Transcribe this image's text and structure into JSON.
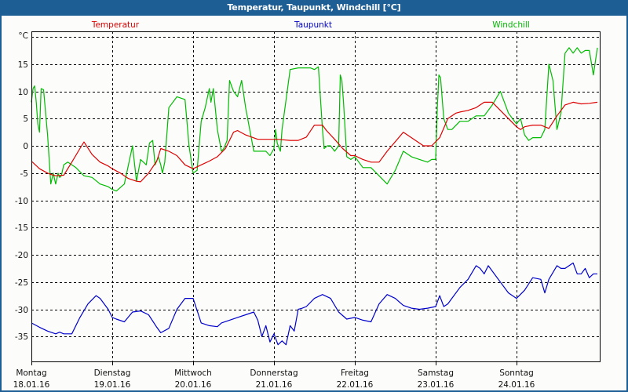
{
  "window": {
    "title": "Temperatur, Taupunkt, Windchill [°C]",
    "colors": {
      "titlebar": "#1d5f95",
      "background": "#fcfdfb",
      "grid": "#000000"
    }
  },
  "legend": [
    {
      "label": "Temperatur",
      "color": "#dd0000"
    },
    {
      "label": "Taupunkt",
      "color": "#0000cc"
    },
    {
      "label": "Windchill",
      "color": "#00bb00"
    }
  ],
  "axes": {
    "y_unit": "°C",
    "y_ticks": [
      "15",
      "10",
      "5",
      "0",
      "-5",
      "-10",
      "-15",
      "-20",
      "-25",
      "-30",
      "-35"
    ],
    "x_ticks": [
      {
        "day": "Montag",
        "date": "18.01.16"
      },
      {
        "day": "Dienstag",
        "date": "19.01.16"
      },
      {
        "day": "Mittwoch",
        "date": "20.01.16"
      },
      {
        "day": "Donnerstag",
        "date": "21.01.16"
      },
      {
        "day": "Freitag",
        "date": "22.01.16"
      },
      {
        "day": "Samstag",
        "date": "23.01.16"
      },
      {
        "day": "Sonntag",
        "date": "24.01.16"
      }
    ]
  },
  "chart_data": {
    "type": "line",
    "title": "Temperatur, Taupunkt, Windchill [°C]",
    "xlabel": "",
    "ylabel": "°C",
    "ylim": [
      -40,
      20
    ],
    "xlim_days": [
      0,
      7.03
    ],
    "grid": true,
    "legend_position": "top",
    "categories": [
      "Montag 18.01.16",
      "Dienstag 19.01.16",
      "Mittwoch 20.01.16",
      "Donnerstag 21.01.16",
      "Freitag 22.01.16",
      "Samstag 23.01.16",
      "Sonntag 24.01.16"
    ],
    "series": [
      {
        "name": "Temperatur",
        "color": "#dd0000",
        "x": [
          0,
          0.1,
          0.2,
          0.25,
          0.3,
          0.4,
          0.5,
          0.6,
          0.65,
          0.75,
          0.85,
          0.95,
          1.0,
          1.1,
          1.2,
          1.3,
          1.35,
          1.45,
          1.55,
          1.6,
          1.7,
          1.8,
          1.9,
          2.0,
          2.1,
          2.2,
          2.3,
          2.4,
          2.5,
          2.55,
          2.65,
          2.8,
          2.95,
          3.05,
          3.2,
          3.3,
          3.4,
          3.5,
          3.6,
          3.65,
          3.75,
          3.85,
          3.95,
          4.0,
          4.1,
          4.2,
          4.3,
          4.4,
          4.6,
          4.75,
          4.85,
          4.95,
          5.05,
          5.15,
          5.25,
          5.3,
          5.4,
          5.5,
          5.6,
          5.7,
          5.8,
          5.9,
          6.0,
          6.05,
          6.1,
          6.2,
          6.3,
          6.4,
          6.5,
          6.6,
          6.7,
          6.8,
          6.9,
          7.0
        ],
        "values": [
          -2.8,
          -4.2,
          -5.0,
          -5.3,
          -5.5,
          -5.4,
          -3.0,
          -0.5,
          0.7,
          -1.6,
          -3.0,
          -3.7,
          -4.2,
          -5.0,
          -6.0,
          -6.5,
          -6.6,
          -5.0,
          -2.8,
          -0.5,
          -1.0,
          -1.8,
          -3.5,
          -4.2,
          -3.5,
          -2.8,
          -2.0,
          -0.5,
          2.5,
          2.8,
          2.0,
          1.2,
          1.2,
          1.2,
          1.0,
          1.0,
          1.6,
          3.8,
          3.8,
          2.8,
          1.2,
          -0.5,
          -1.8,
          -1.8,
          -2.5,
          -3.0,
          -3.0,
          -1.0,
          2.5,
          1.0,
          0.0,
          0.0,
          1.5,
          5.0,
          6.0,
          6.2,
          6.5,
          7.0,
          8.0,
          8.0,
          6.5,
          5.0,
          3.5,
          3.0,
          3.5,
          3.8,
          3.8,
          3.2,
          5.5,
          7.5,
          8.0,
          7.7,
          7.8,
          8.0
        ]
      },
      {
        "name": "Taupunkt",
        "color": "#0000cc",
        "x": [
          0,
          0.1,
          0.2,
          0.3,
          0.35,
          0.4,
          0.5,
          0.6,
          0.7,
          0.8,
          0.85,
          0.95,
          1.0,
          1.05,
          1.15,
          1.25,
          1.35,
          1.45,
          1.55,
          1.6,
          1.7,
          1.8,
          1.9,
          2.0,
          2.1,
          2.2,
          2.3,
          2.35,
          2.45,
          2.55,
          2.65,
          2.75,
          2.8,
          2.85,
          2.9,
          2.95,
          3.0,
          3.05,
          3.1,
          3.15,
          3.2,
          3.25,
          3.3,
          3.35,
          3.4,
          3.5,
          3.6,
          3.7,
          3.8,
          3.9,
          4.0,
          4.1,
          4.2,
          4.3,
          4.4,
          4.5,
          4.6,
          4.7,
          4.8,
          4.9,
          5.0,
          5.05,
          5.1,
          5.15,
          5.2,
          5.3,
          5.4,
          5.5,
          5.55,
          5.6,
          5.65,
          5.8,
          5.9,
          6.0,
          6.1,
          6.2,
          6.3,
          6.35,
          6.4,
          6.5,
          6.55,
          6.6,
          6.7,
          6.75,
          6.8,
          6.85,
          6.9,
          6.95,
          7.0
        ],
        "values": [
          -32.5,
          -33.3,
          -34.0,
          -34.5,
          -34.2,
          -34.5,
          -34.5,
          -31.5,
          -29.0,
          -27.5,
          -28.0,
          -30.0,
          -31.5,
          -31.8,
          -32.3,
          -30.5,
          -30.3,
          -31.0,
          -33.3,
          -34.3,
          -33.5,
          -30.0,
          -28.0,
          -28.0,
          -32.5,
          -33.0,
          -33.2,
          -32.5,
          -32.0,
          -31.5,
          -31.0,
          -30.5,
          -32.0,
          -35.0,
          -33.0,
          -36.0,
          -34.5,
          -36.5,
          -35.8,
          -36.5,
          -33.0,
          -34.0,
          -30.0,
          -29.8,
          -29.5,
          -28.0,
          -27.3,
          -28.0,
          -30.5,
          -31.8,
          -31.5,
          -32.0,
          -32.3,
          -29.0,
          -27.3,
          -28.0,
          -29.3,
          -29.8,
          -30.0,
          -29.8,
          -29.5,
          -27.5,
          -29.5,
          -29.0,
          -28.0,
          -26.0,
          -24.5,
          -22.0,
          -22.5,
          -23.5,
          -22.0,
          -25.0,
          -27.0,
          -28.0,
          -26.5,
          -24.2,
          -24.5,
          -27.0,
          -24.5,
          -22.0,
          -22.5,
          -22.5,
          -21.5,
          -23.5,
          -23.5,
          -22.5,
          -24.2,
          -23.5,
          -23.5
        ]
      },
      {
        "name": "Windchill",
        "color": "#00bb00",
        "x": [
          0,
          0.02,
          0.04,
          0.06,
          0.08,
          0.1,
          0.12,
          0.15,
          0.2,
          0.24,
          0.27,
          0.3,
          0.33,
          0.35,
          0.37,
          0.4,
          0.45,
          0.55,
          0.65,
          0.75,
          0.85,
          0.95,
          1.0,
          1.05,
          1.15,
          1.25,
          1.3,
          1.35,
          1.4,
          1.42,
          1.44,
          1.46,
          1.5,
          1.53,
          1.57,
          1.6,
          1.62,
          1.65,
          1.7,
          1.8,
          1.9,
          1.95,
          2.0,
          2.05,
          2.1,
          2.15,
          2.2,
          2.22,
          2.25,
          2.3,
          2.35,
          2.38,
          2.42,
          2.45,
          2.5,
          2.55,
          2.6,
          2.65,
          2.75,
          2.8,
          2.9,
          2.95,
          3.0,
          3.02,
          3.04,
          3.08,
          3.1,
          3.2,
          3.3,
          3.45,
          3.5,
          3.55,
          3.6,
          3.62,
          3.66,
          3.7,
          3.75,
          3.8,
          3.82,
          3.84,
          3.86,
          3.9,
          3.95,
          4.0,
          4.1,
          4.2,
          4.3,
          4.4,
          4.5,
          4.6,
          4.7,
          4.8,
          4.9,
          4.95,
          5.0,
          5.02,
          5.04,
          5.06,
          5.1,
          5.15,
          5.2,
          5.3,
          5.4,
          5.5,
          5.6,
          5.7,
          5.8,
          5.9,
          6.0,
          6.05,
          6.1,
          6.15,
          6.2,
          6.3,
          6.35,
          6.4,
          6.45,
          6.5,
          6.55,
          6.6,
          6.65,
          6.7,
          6.75,
          6.8,
          6.85,
          6.9,
          6.95,
          7.0
        ],
        "values": [
          8.0,
          10.5,
          11.0,
          8.0,
          4.0,
          2.5,
          10.5,
          10.3,
          2.0,
          -7.0,
          -5.0,
          -7.0,
          -5.0,
          -5.8,
          -5.5,
          -3.5,
          -3.0,
          -4.0,
          -5.5,
          -5.8,
          -7.0,
          -7.5,
          -8.0,
          -8.3,
          -7.0,
          0.0,
          -6.5,
          -2.5,
          -3.2,
          -3.5,
          -1.5,
          0.5,
          1.0,
          -3.5,
          -2.0,
          -3.5,
          -5.0,
          -3.0,
          7.0,
          9.0,
          8.5,
          0.0,
          -5.0,
          -4.5,
          4.5,
          7.0,
          10.5,
          8.0,
          10.5,
          3.0,
          -1.0,
          -0.5,
          1.0,
          12.0,
          10.0,
          9.0,
          12.0,
          7.0,
          -1.0,
          -1.0,
          -1.0,
          -1.8,
          -0.5,
          3.0,
          0.5,
          -1.0,
          3.0,
          14.0,
          14.3,
          14.3,
          14.0,
          14.5,
          3.0,
          -0.5,
          0.0,
          0.0,
          -1.0,
          0.0,
          13.0,
          12.0,
          8.0,
          -2.0,
          -2.5,
          -2.0,
          -4.0,
          -4.0,
          -5.5,
          -7.0,
          -4.5,
          -1.0,
          -2.0,
          -2.5,
          -3.0,
          -2.5,
          -2.5,
          7.0,
          13.0,
          12.5,
          5.0,
          3.0,
          3.0,
          4.5,
          4.5,
          5.5,
          5.5,
          7.5,
          10.0,
          6.0,
          4.0,
          5.0,
          2.0,
          1.0,
          1.5,
          1.5,
          3.0,
          15.0,
          12.0,
          3.0,
          6.0,
          17.0,
          18.0,
          17.0,
          18.0,
          17.0,
          17.5,
          17.5,
          13.0,
          18.0
        ]
      }
    ]
  }
}
